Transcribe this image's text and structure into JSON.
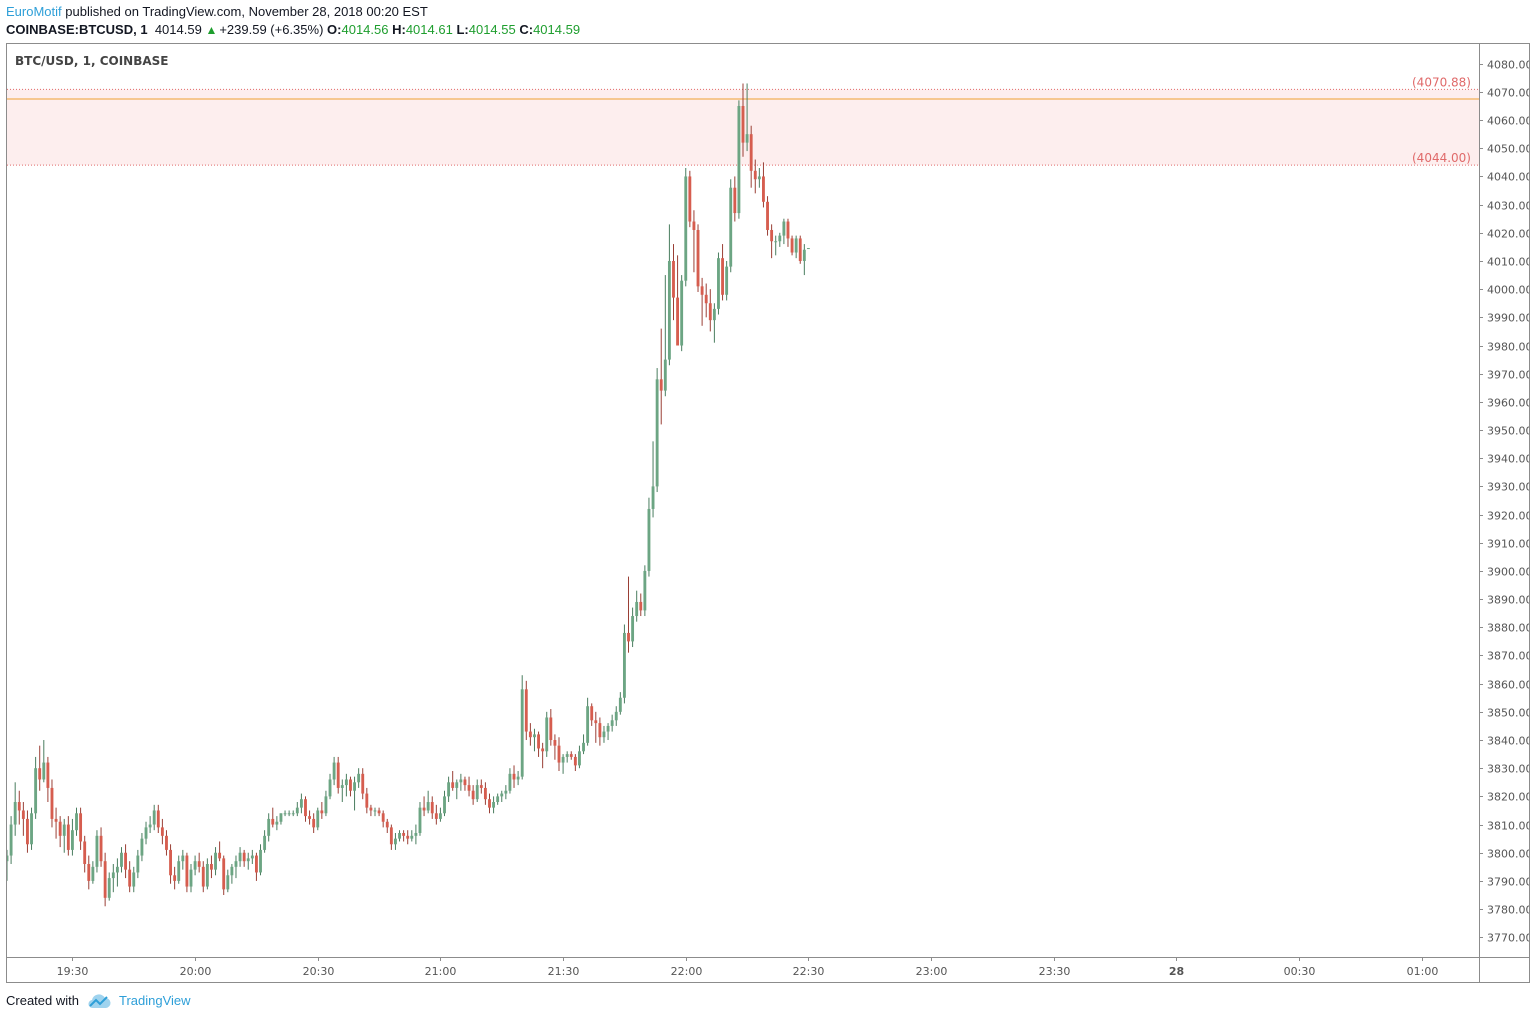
{
  "header": {
    "author": "EuroMotif",
    "published": " published on TradingView.com, November 28, 2018 00:20 EST",
    "symbol": "COINBASE:BTCUSD, 1",
    "last": "4014.59",
    "up_arrow": "▲",
    "change": "+239.59 (+6.35%)",
    "o_label": "O:",
    "o": "4014.56",
    "h_label": "H:",
    "h": "4014.61",
    "l_label": "L:",
    "l": "4014.55",
    "c_label": "C:",
    "c": "4014.59"
  },
  "footer": {
    "created_with": "Created with",
    "brand": "TradingView",
    "logo_icon": "tradingview-cloud-icon"
  },
  "colors": {
    "up": "#6ca583",
    "down": "#d65d4f",
    "zone_fill": "#fdeeee",
    "zone_line": "#e06a6a",
    "orange_line": "#f0a030",
    "axis_text": "#555555",
    "brand": "#2e9fd8"
  },
  "chart_data": {
    "type": "candlestick",
    "title": "BTC/USD, 1, COINBASE",
    "interval_minutes": 1,
    "ylim": [
      3763,
      4087
    ],
    "y_ticks": [
      3770,
      3780,
      3790,
      3800,
      3810,
      3820,
      3830,
      3840,
      3850,
      3860,
      3870,
      3880,
      3890,
      3900,
      3910,
      3920,
      3930,
      3940,
      3950,
      3960,
      3970,
      3980,
      3990,
      4000,
      4010,
      4020,
      4030,
      4040,
      4050,
      4060,
      4070,
      4080
    ],
    "x_range": [
      "19:14",
      "01:14"
    ],
    "x_ticks": [
      {
        "time": "19:30",
        "label": "19:30",
        "bold": false
      },
      {
        "time": "20:00",
        "label": "20:00",
        "bold": false
      },
      {
        "time": "20:30",
        "label": "20:30",
        "bold": false
      },
      {
        "time": "21:00",
        "label": "21:00",
        "bold": false
      },
      {
        "time": "21:30",
        "label": "21:30",
        "bold": false
      },
      {
        "time": "22:00",
        "label": "22:00",
        "bold": false
      },
      {
        "time": "22:30",
        "label": "22:30",
        "bold": false
      },
      {
        "time": "23:00",
        "label": "23:00",
        "bold": false
      },
      {
        "time": "23:30",
        "label": "23:30",
        "bold": false
      },
      {
        "time": "00:00",
        "label": "28",
        "bold": true
      },
      {
        "time": "00:30",
        "label": "00:30",
        "bold": false
      },
      {
        "time": "01:00",
        "label": "01:00",
        "bold": false
      }
    ],
    "zone": {
      "top": 4070.88,
      "bottom": 4044.0,
      "top_label": "(4070.88)",
      "bottom_label": "(4044.00)"
    },
    "horizontal_line": 4067.5,
    "first_bar_time": "19:14",
    "candles_ohlc": [
      [
        3797,
        3801,
        3790,
        3799
      ],
      [
        3799,
        3813,
        3796,
        3810
      ],
      [
        3810,
        3825,
        3806,
        3818
      ],
      [
        3818,
        3822,
        3810,
        3815
      ],
      [
        3815,
        3818,
        3806,
        3812
      ],
      [
        3812,
        3815,
        3800,
        3803
      ],
      [
        3803,
        3816,
        3801,
        3814
      ],
      [
        3814,
        3834,
        3812,
        3830
      ],
      [
        3830,
        3838,
        3822,
        3826
      ],
      [
        3826,
        3840,
        3825,
        3832
      ],
      [
        3832,
        3834,
        3818,
        3823
      ],
      [
        3823,
        3826,
        3809,
        3812
      ],
      [
        3812,
        3816,
        3805,
        3811
      ],
      [
        3811,
        3813,
        3802,
        3806
      ],
      [
        3806,
        3812,
        3800,
        3810
      ],
      [
        3810,
        3813,
        3799,
        3801
      ],
      [
        3801,
        3812,
        3799,
        3808
      ],
      [
        3808,
        3816,
        3806,
        3814
      ],
      [
        3814,
        3816,
        3801,
        3804
      ],
      [
        3804,
        3806,
        3793,
        3796
      ],
      [
        3796,
        3799,
        3787,
        3790
      ],
      [
        3790,
        3797,
        3789,
        3795
      ],
      [
        3795,
        3808,
        3793,
        3806
      ],
      [
        3806,
        3809,
        3795,
        3797
      ],
      [
        3797,
        3800,
        3781,
        3784
      ],
      [
        3784,
        3793,
        3783,
        3791
      ],
      [
        3791,
        3796,
        3786,
        3793
      ],
      [
        3793,
        3798,
        3788,
        3795
      ],
      [
        3795,
        3802,
        3793,
        3800
      ],
      [
        3800,
        3803,
        3791,
        3794
      ],
      [
        3794,
        3797,
        3786,
        3788
      ],
      [
        3788,
        3795,
        3786,
        3793
      ],
      [
        3793,
        3801,
        3791,
        3799
      ],
      [
        3799,
        3807,
        3797,
        3805
      ],
      [
        3805,
        3811,
        3803,
        3809
      ],
      [
        3809,
        3813,
        3807,
        3810
      ],
      [
        3810,
        3817,
        3808,
        3815
      ],
      [
        3815,
        3817,
        3807,
        3809
      ],
      [
        3809,
        3812,
        3803,
        3806
      ],
      [
        3806,
        3808,
        3799,
        3801
      ],
      [
        3801,
        3803,
        3789,
        3792
      ],
      [
        3792,
        3795,
        3787,
        3790
      ],
      [
        3790,
        3799,
        3789,
        3797
      ],
      [
        3797,
        3801,
        3794,
        3799
      ],
      [
        3799,
        3800,
        3786,
        3788
      ],
      [
        3788,
        3796,
        3786,
        3794
      ],
      [
        3794,
        3799,
        3792,
        3797
      ],
      [
        3797,
        3800,
        3793,
        3795
      ],
      [
        3795,
        3797,
        3786,
        3788
      ],
      [
        3788,
        3798,
        3787,
        3796
      ],
      [
        3796,
        3799,
        3791,
        3794
      ],
      [
        3794,
        3802,
        3792,
        3800
      ],
      [
        3800,
        3804,
        3797,
        3798
      ],
      [
        3798,
        3799,
        3785,
        3787
      ],
      [
        3787,
        3794,
        3786,
        3792
      ],
      [
        3792,
        3796,
        3789,
        3795
      ],
      [
        3795,
        3799,
        3791,
        3797
      ],
      [
        3797,
        3802,
        3795,
        3800
      ],
      [
        3800,
        3801,
        3795,
        3797
      ],
      [
        3797,
        3800,
        3794,
        3798
      ],
      [
        3798,
        3801,
        3796,
        3799
      ],
      [
        3799,
        3800,
        3790,
        3793
      ],
      [
        3793,
        3803,
        3792,
        3801
      ],
      [
        3801,
        3808,
        3800,
        3806
      ],
      [
        3806,
        3814,
        3804,
        3812
      ],
      [
        3812,
        3816,
        3809,
        3810
      ],
      [
        3810,
        3813,
        3808,
        3811
      ],
      [
        3811,
        3814,
        3810,
        3814
      ],
      [
        3814,
        3815,
        3813,
        3814
      ],
      [
        3814,
        3815,
        3813,
        3814
      ],
      [
        3814,
        3815,
        3813,
        3814
      ],
      [
        3814,
        3818,
        3813,
        3816
      ],
      [
        3816,
        3821,
        3814,
        3819
      ],
      [
        3819,
        3820,
        3811,
        3813
      ],
      [
        3813,
        3815,
        3810,
        3812
      ],
      [
        3812,
        3814,
        3807,
        3809
      ],
      [
        3809,
        3816,
        3808,
        3815
      ],
      [
        3815,
        3818,
        3812,
        3814
      ],
      [
        3814,
        3822,
        3813,
        3820
      ],
      [
        3820,
        3828,
        3819,
        3826
      ],
      [
        3826,
        3834,
        3824,
        3832
      ],
      [
        3832,
        3834,
        3821,
        3823
      ],
      [
        3823,
        3826,
        3818,
        3824
      ],
      [
        3824,
        3828,
        3820,
        3826
      ],
      [
        3826,
        3827,
        3820,
        3822
      ],
      [
        3822,
        3827,
        3815,
        3825
      ],
      [
        3825,
        3830,
        3823,
        3828
      ],
      [
        3828,
        3830,
        3819,
        3821
      ],
      [
        3821,
        3823,
        3814,
        3816
      ],
      [
        3816,
        3817,
        3813,
        3815
      ],
      [
        3815,
        3816,
        3813,
        3815
      ],
      [
        3815,
        3816,
        3813,
        3814
      ],
      [
        3814,
        3815,
        3809,
        3811
      ],
      [
        3811,
        3812,
        3807,
        3809
      ],
      [
        3809,
        3810,
        3801,
        3803
      ],
      [
        3803,
        3807,
        3801,
        3805
      ],
      [
        3805,
        3808,
        3804,
        3807
      ],
      [
        3807,
        3808,
        3804,
        3806
      ],
      [
        3806,
        3808,
        3803,
        3805
      ],
      [
        3805,
        3808,
        3804,
        3806
      ],
      [
        3806,
        3810,
        3803,
        3807
      ],
      [
        3807,
        3818,
        3806,
        3816
      ],
      [
        3816,
        3820,
        3813,
        3815
      ],
      [
        3815,
        3822,
        3814,
        3818
      ],
      [
        3818,
        3820,
        3812,
        3814
      ],
      [
        3814,
        3817,
        3810,
        3812
      ],
      [
        3812,
        3816,
        3811,
        3814
      ],
      [
        3814,
        3822,
        3813,
        3820
      ],
      [
        3820,
        3827,
        3818,
        3825
      ],
      [
        3825,
        3829,
        3822,
        3823
      ],
      [
        3823,
        3826,
        3819,
        3825
      ],
      [
        3825,
        3828,
        3822,
        3826
      ],
      [
        3826,
        3827,
        3822,
        3824
      ],
      [
        3824,
        3827,
        3820,
        3822
      ],
      [
        3822,
        3824,
        3817,
        3819
      ],
      [
        3819,
        3826,
        3818,
        3824
      ],
      [
        3824,
        3826,
        3821,
        3823
      ],
      [
        3823,
        3825,
        3817,
        3819
      ],
      [
        3819,
        3821,
        3814,
        3816
      ],
      [
        3816,
        3820,
        3814,
        3818
      ],
      [
        3818,
        3821,
        3817,
        3820
      ],
      [
        3820,
        3822,
        3818,
        3821
      ],
      [
        3821,
        3824,
        3819,
        3822
      ],
      [
        3822,
        3830,
        3821,
        3828
      ],
      [
        3828,
        3831,
        3823,
        3826
      ],
      [
        3826,
        3829,
        3824,
        3827
      ],
      [
        3827,
        3863,
        3826,
        3858
      ],
      [
        3858,
        3861,
        3840,
        3843
      ],
      [
        3843,
        3846,
        3838,
        3841
      ],
      [
        3841,
        3844,
        3836,
        3842
      ],
      [
        3842,
        3843,
        3834,
        3837
      ],
      [
        3837,
        3839,
        3830,
        3836
      ],
      [
        3836,
        3850,
        3834,
        3848
      ],
      [
        3848,
        3851,
        3838,
        3840
      ],
      [
        3840,
        3842,
        3833,
        3838
      ],
      [
        3838,
        3841,
        3829,
        3832
      ],
      [
        3832,
        3835,
        3828,
        3834
      ],
      [
        3834,
        3836,
        3832,
        3835
      ],
      [
        3835,
        3836,
        3833,
        3834
      ],
      [
        3834,
        3835,
        3829,
        3831
      ],
      [
        3831,
        3838,
        3830,
        3836
      ],
      [
        3836,
        3842,
        3835,
        3839
      ],
      [
        3839,
        3855,
        3838,
        3852
      ],
      [
        3852,
        3853,
        3845,
        3847
      ],
      [
        3847,
        3850,
        3839,
        3846
      ],
      [
        3846,
        3848,
        3838,
        3841
      ],
      [
        3841,
        3845,
        3839,
        3843
      ],
      [
        3843,
        3846,
        3840,
        3845
      ],
      [
        3845,
        3849,
        3843,
        3847
      ],
      [
        3847,
        3852,
        3845,
        3850
      ],
      [
        3850,
        3857,
        3849,
        3855
      ],
      [
        3855,
        3881,
        3853,
        3878
      ],
      [
        3878,
        3898,
        3871,
        3875
      ],
      [
        3875,
        3887,
        3873,
        3884
      ],
      [
        3884,
        3893,
        3882,
        3889
      ],
      [
        3889,
        3892,
        3884,
        3886
      ],
      [
        3886,
        3902,
        3884,
        3900
      ],
      [
        3900,
        3926,
        3898,
        3922
      ],
      [
        3922,
        3946,
        3919,
        3930
      ],
      [
        3930,
        3972,
        3928,
        3968
      ],
      [
        3968,
        3986,
        3952,
        3964
      ],
      [
        3964,
        4005,
        3962,
        3975
      ],
      [
        3975,
        4023,
        3973,
        4010
      ],
      [
        4010,
        4016,
        3989,
        3997
      ],
      [
        3997,
        4012,
        3980,
        3980
      ],
      [
        3980,
        4005,
        3978,
        4003
      ],
      [
        4003,
        4043,
        4001,
        4040
      ],
      [
        4040,
        4042,
        4022,
        4024
      ],
      [
        4024,
        4028,
        4006,
        4021
      ],
      [
        4021,
        4023,
        3999,
        4001
      ],
      [
        4001,
        4004,
        3987,
        3998
      ],
      [
        3998,
        4002,
        3990,
        3995
      ],
      [
        3995,
        4000,
        3985,
        3989
      ],
      [
        3989,
        3995,
        3981,
        3993
      ],
      [
        3993,
        4013,
        3991,
        4011
      ],
      [
        4011,
        4016,
        3996,
        3998
      ],
      [
        3998,
        4010,
        3996,
        4008
      ],
      [
        4008,
        4039,
        4006,
        4036
      ],
      [
        4036,
        4040,
        4024,
        4027
      ],
      [
        4027,
        4067,
        4025,
        4065
      ],
      [
        4065,
        4073,
        4047,
        4052
      ],
      [
        4052,
        4073,
        4049,
        4055
      ],
      [
        4055,
        4058,
        4036,
        4042
      ],
      [
        4042,
        4046,
        4034,
        4039
      ],
      [
        4039,
        4043,
        4036,
        4040
      ],
      [
        4040,
        4045,
        4029,
        4031
      ],
      [
        4031,
        4033,
        4019,
        4021
      ],
      [
        4021,
        4023,
        4011,
        4017
      ],
      [
        4017,
        4019,
        4012,
        4017
      ],
      [
        4017,
        4020,
        4015,
        4019
      ],
      [
        4019,
        4025,
        4016,
        4024
      ],
      [
        4024,
        4025,
        4015,
        4018
      ],
      [
        4018,
        4019,
        4012,
        4013
      ],
      [
        4013,
        4019,
        4011,
        4018
      ],
      [
        4018,
        4019,
        4009,
        4010
      ],
      [
        4010,
        4016,
        4005,
        4014
      ],
      [
        4014.56,
        4014.61,
        4014.55,
        4014.59
      ]
    ]
  }
}
